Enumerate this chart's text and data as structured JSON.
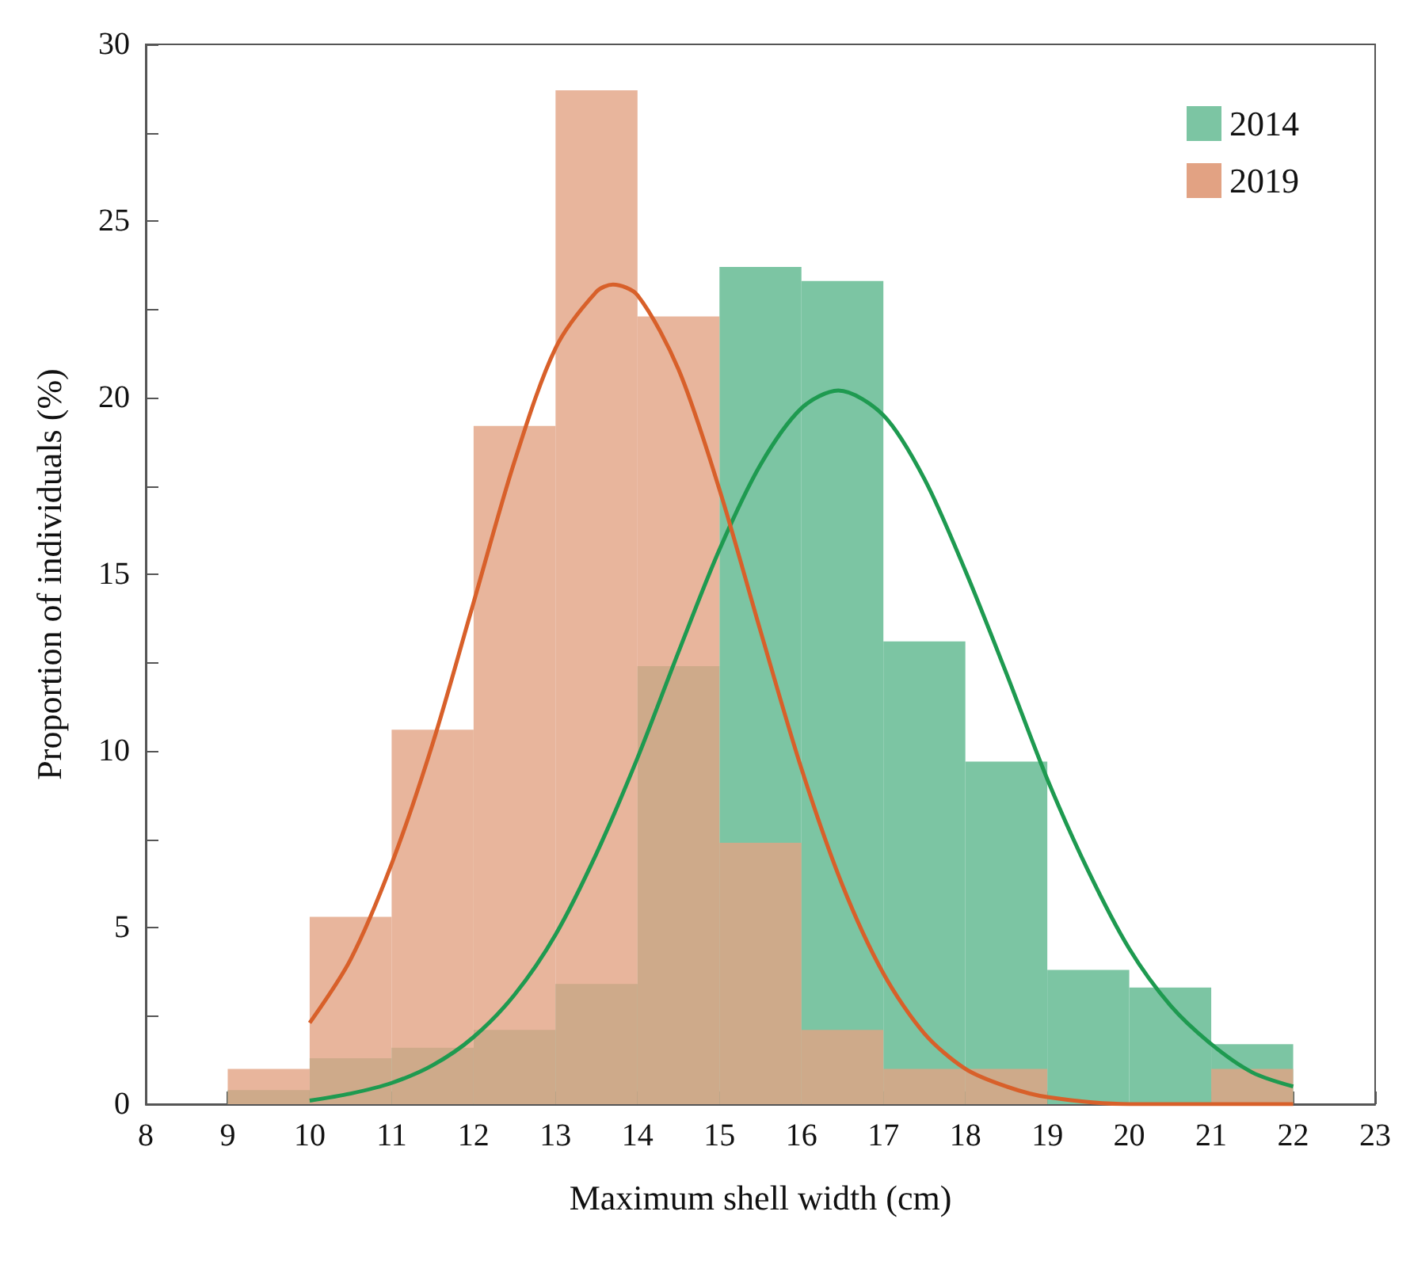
{
  "chart_data": {
    "type": "histogram",
    "xlabel": "Maximum shell width (cm)",
    "ylabel": "Proportion of individuals (%)",
    "bins": [
      9,
      10,
      11,
      12,
      13,
      14,
      15,
      16,
      17,
      18,
      19,
      20,
      21,
      22
    ],
    "series": [
      {
        "name": "2014",
        "color": "#7cc5a3",
        "values": [
          0.4,
          1.3,
          1.6,
          2.1,
          3.4,
          12.4,
          23.7,
          23.3,
          13.1,
          9.7,
          3.8,
          3.3,
          1.7
        ]
      },
      {
        "name": "2019",
        "color": "#e2a283",
        "values": [
          1.0,
          5.3,
          10.6,
          19.2,
          28.7,
          22.3,
          7.4,
          2.1,
          1.0,
          1.0,
          0,
          0,
          1.0
        ]
      },
      {
        "type": "line",
        "color": "#1e9a50",
        "x": [
          10,
          10.5,
          11,
          11.5,
          12,
          12.5,
          13,
          13.5,
          14,
          14.5,
          15,
          15.5,
          16,
          16.45,
          17,
          17.5,
          18,
          18.5,
          19,
          19.5,
          20,
          20.5,
          21,
          21.5,
          22
        ],
        "values": [
          0.1,
          0.3,
          0.6,
          1.1,
          1.9,
          3.1,
          4.8,
          7.1,
          9.8,
          12.8,
          15.7,
          18.1,
          19.7,
          20.2,
          19.5,
          17.7,
          15.1,
          12.2,
          9.2,
          6.6,
          4.4,
          2.8,
          1.7,
          0.9,
          0.5
        ]
      },
      {
        "type": "line",
        "color": "#d8602a",
        "x": [
          10,
          10.5,
          11,
          11.5,
          12,
          12.5,
          13,
          13.5,
          13.7,
          14,
          14.5,
          15,
          15.5,
          16,
          16.5,
          17,
          17.5,
          18,
          18.5,
          19,
          20,
          21,
          22
        ],
        "values": [
          2.3,
          4.1,
          6.8,
          10.2,
          14.2,
          18.2,
          21.4,
          23.0,
          23.2,
          22.9,
          20.8,
          17.4,
          13.4,
          9.5,
          6.2,
          3.7,
          2.0,
          1.0,
          0.5,
          0.2,
          0.0,
          0.0,
          0.0
        ]
      }
    ],
    "xlim": [
      8,
      23
    ],
    "xticks": [
      8,
      9,
      10,
      11,
      12,
      13,
      14,
      15,
      16,
      17,
      18,
      19,
      20,
      21,
      22,
      23
    ],
    "ylim": [
      0,
      30
    ],
    "yticks": [
      0,
      {
        "value": 2.5,
        "label": null
      },
      5,
      {
        "value": 7.5,
        "label": null
      },
      10,
      {
        "value": 12.5,
        "label": null
      },
      15,
      {
        "value": 17.5,
        "label": null
      },
      20,
      {
        "value": 22.5,
        "label": null
      },
      25,
      {
        "value": 27.5,
        "label": null
      },
      30
    ],
    "legend": "top right",
    "grid": false
  }
}
